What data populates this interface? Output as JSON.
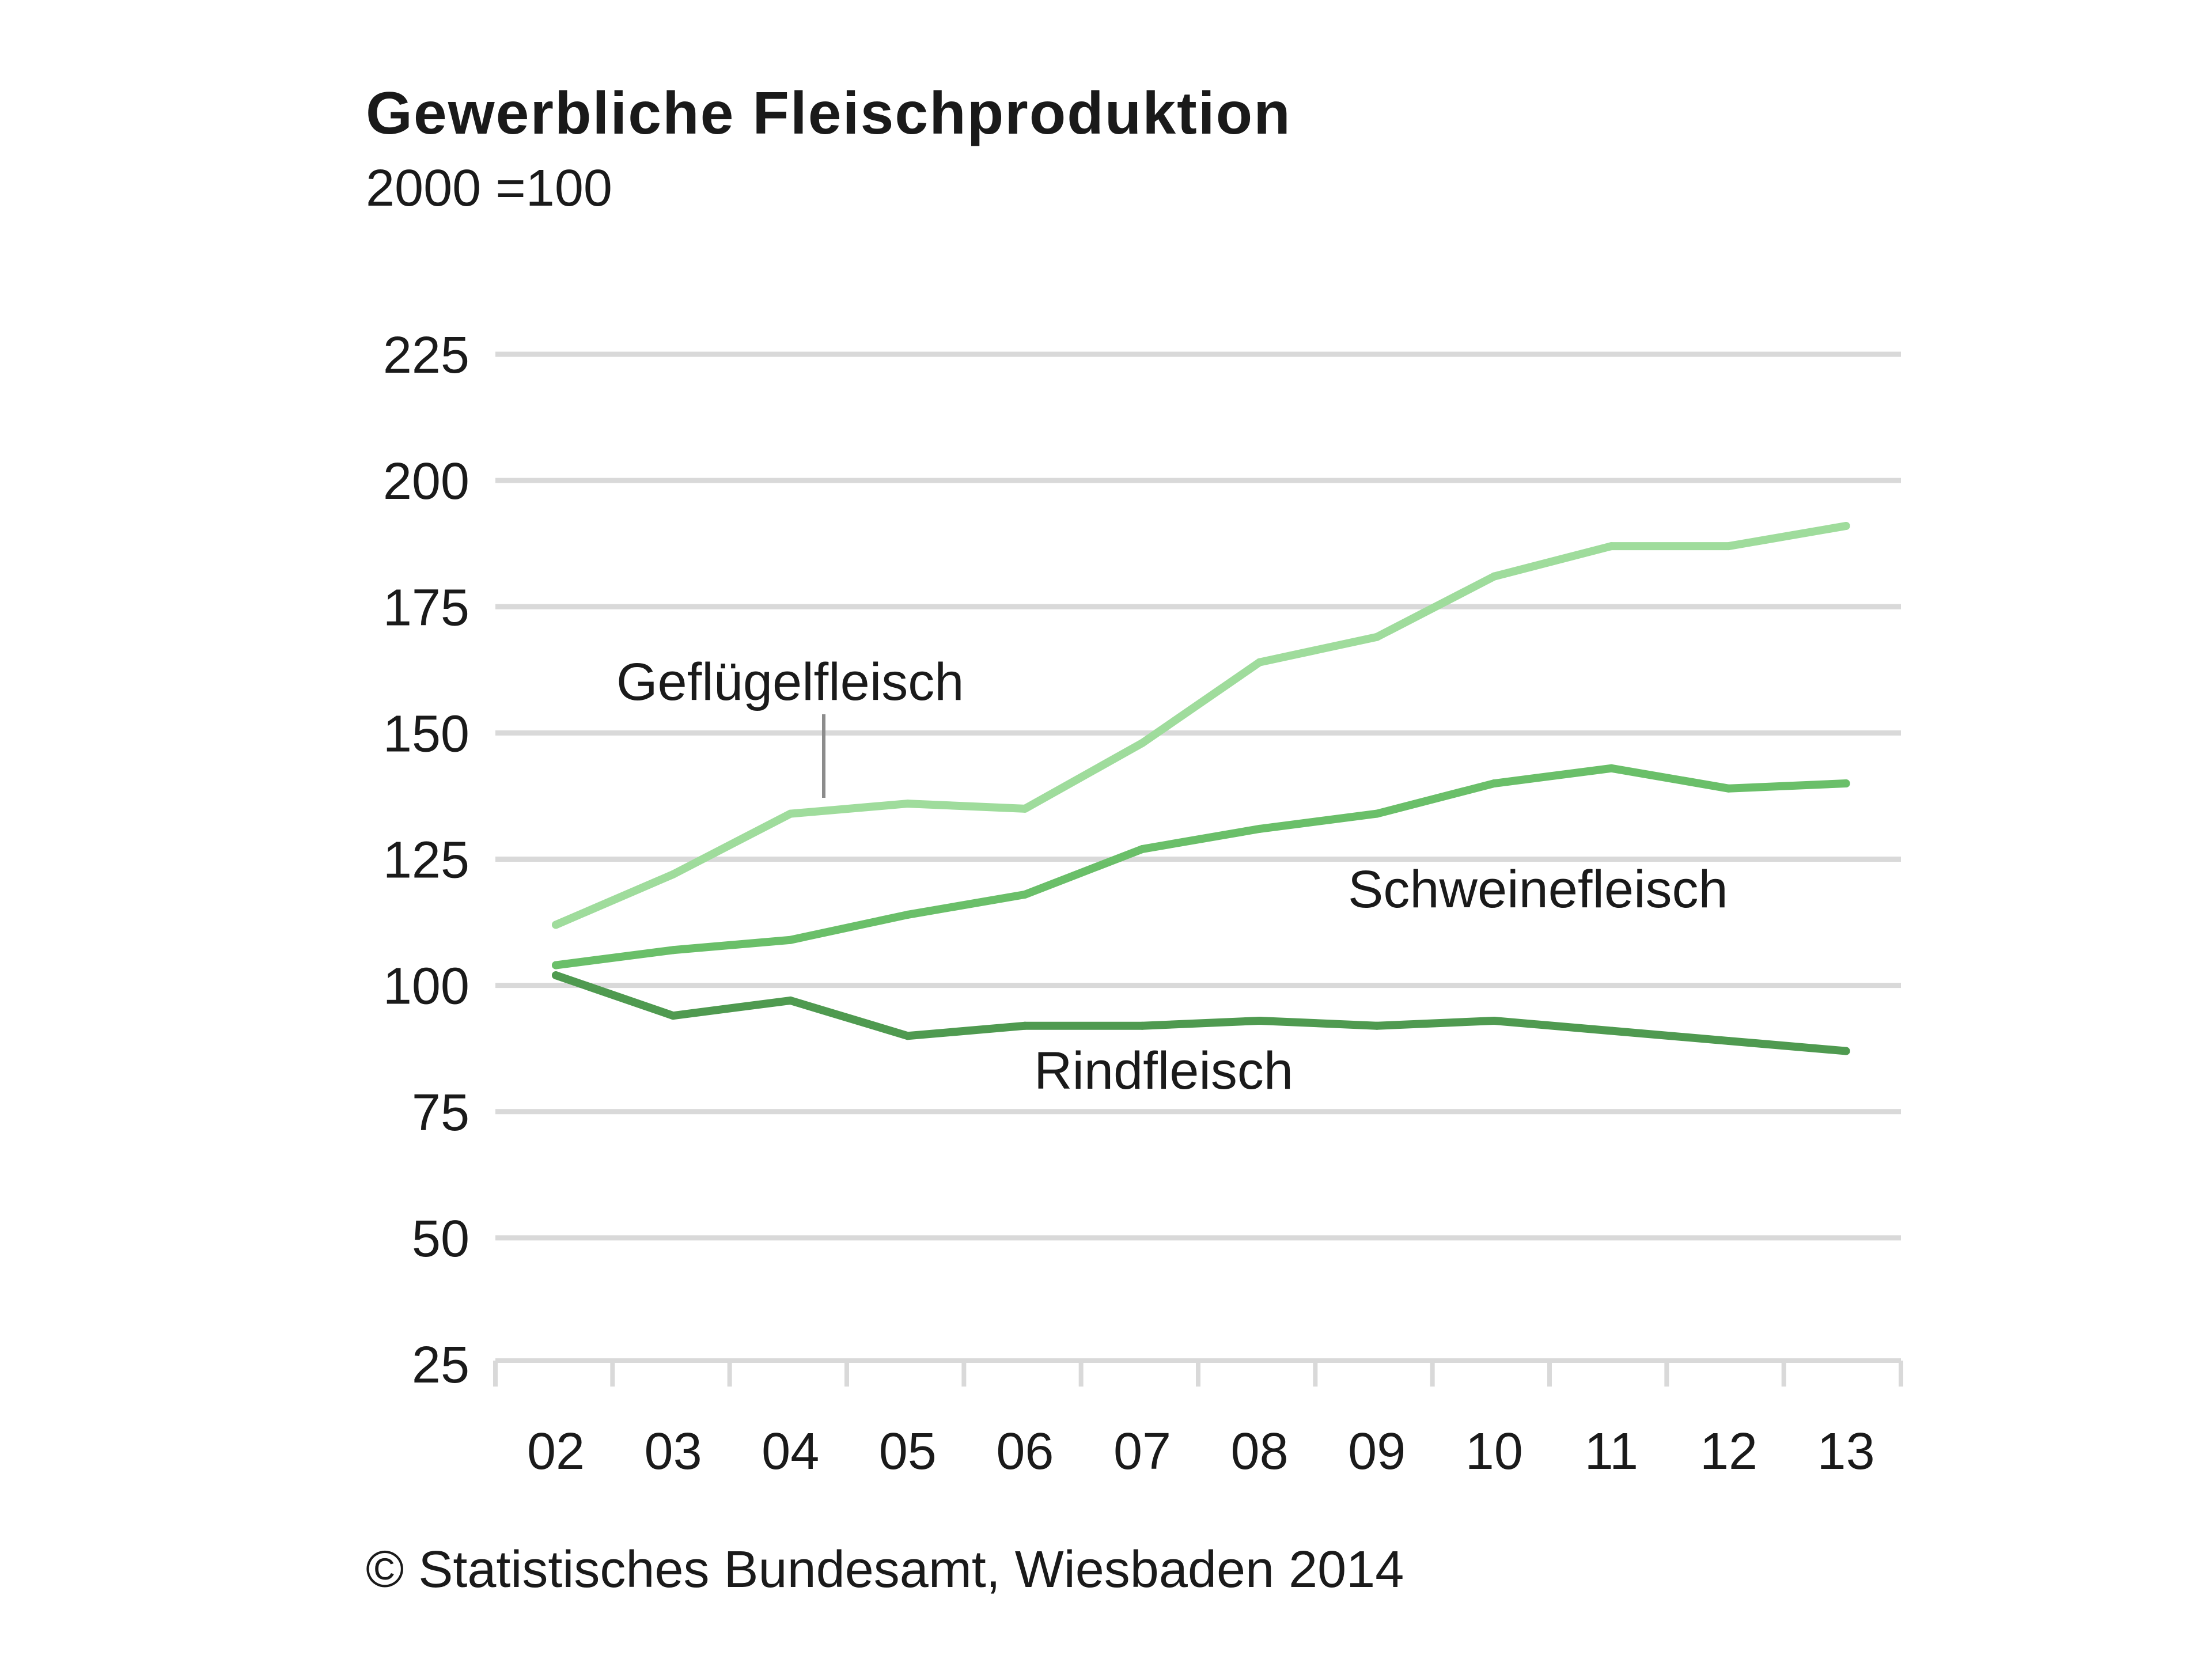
{
  "chart_data": {
    "type": "line",
    "title": "Gewerbliche Fleischproduktion",
    "subtitle": "2000 =100",
    "source": "© Statistisches Bundesamt, Wiesbaden 2014",
    "xlabel": "",
    "ylabel": "",
    "categories": [
      "02",
      "03",
      "04",
      "05",
      "06",
      "07",
      "08",
      "09",
      "10",
      "11",
      "12",
      "13"
    ],
    "ylim": [
      25,
      225
    ],
    "yticks": [
      225,
      200,
      175,
      150,
      125,
      100,
      75,
      50,
      25
    ],
    "grid": true,
    "legend": "none",
    "series": [
      {
        "name": "Geflügelfleisch",
        "color": "#9fdc9c",
        "values": [
          112,
          122,
          134,
          136,
          135,
          148,
          164,
          169,
          181,
          187,
          187,
          191
        ]
      },
      {
        "name": "Schweinefleisch",
        "color": "#6abf69",
        "values": [
          104,
          107,
          109,
          114,
          118,
          127,
          131,
          134,
          140,
          143,
          139,
          140
        ]
      },
      {
        "name": "Rindfleisch",
        "color": "#4f9a50",
        "values": [
          102,
          94,
          97,
          90,
          92,
          92,
          93,
          92,
          93,
          91,
          89,
          87
        ]
      }
    ]
  }
}
